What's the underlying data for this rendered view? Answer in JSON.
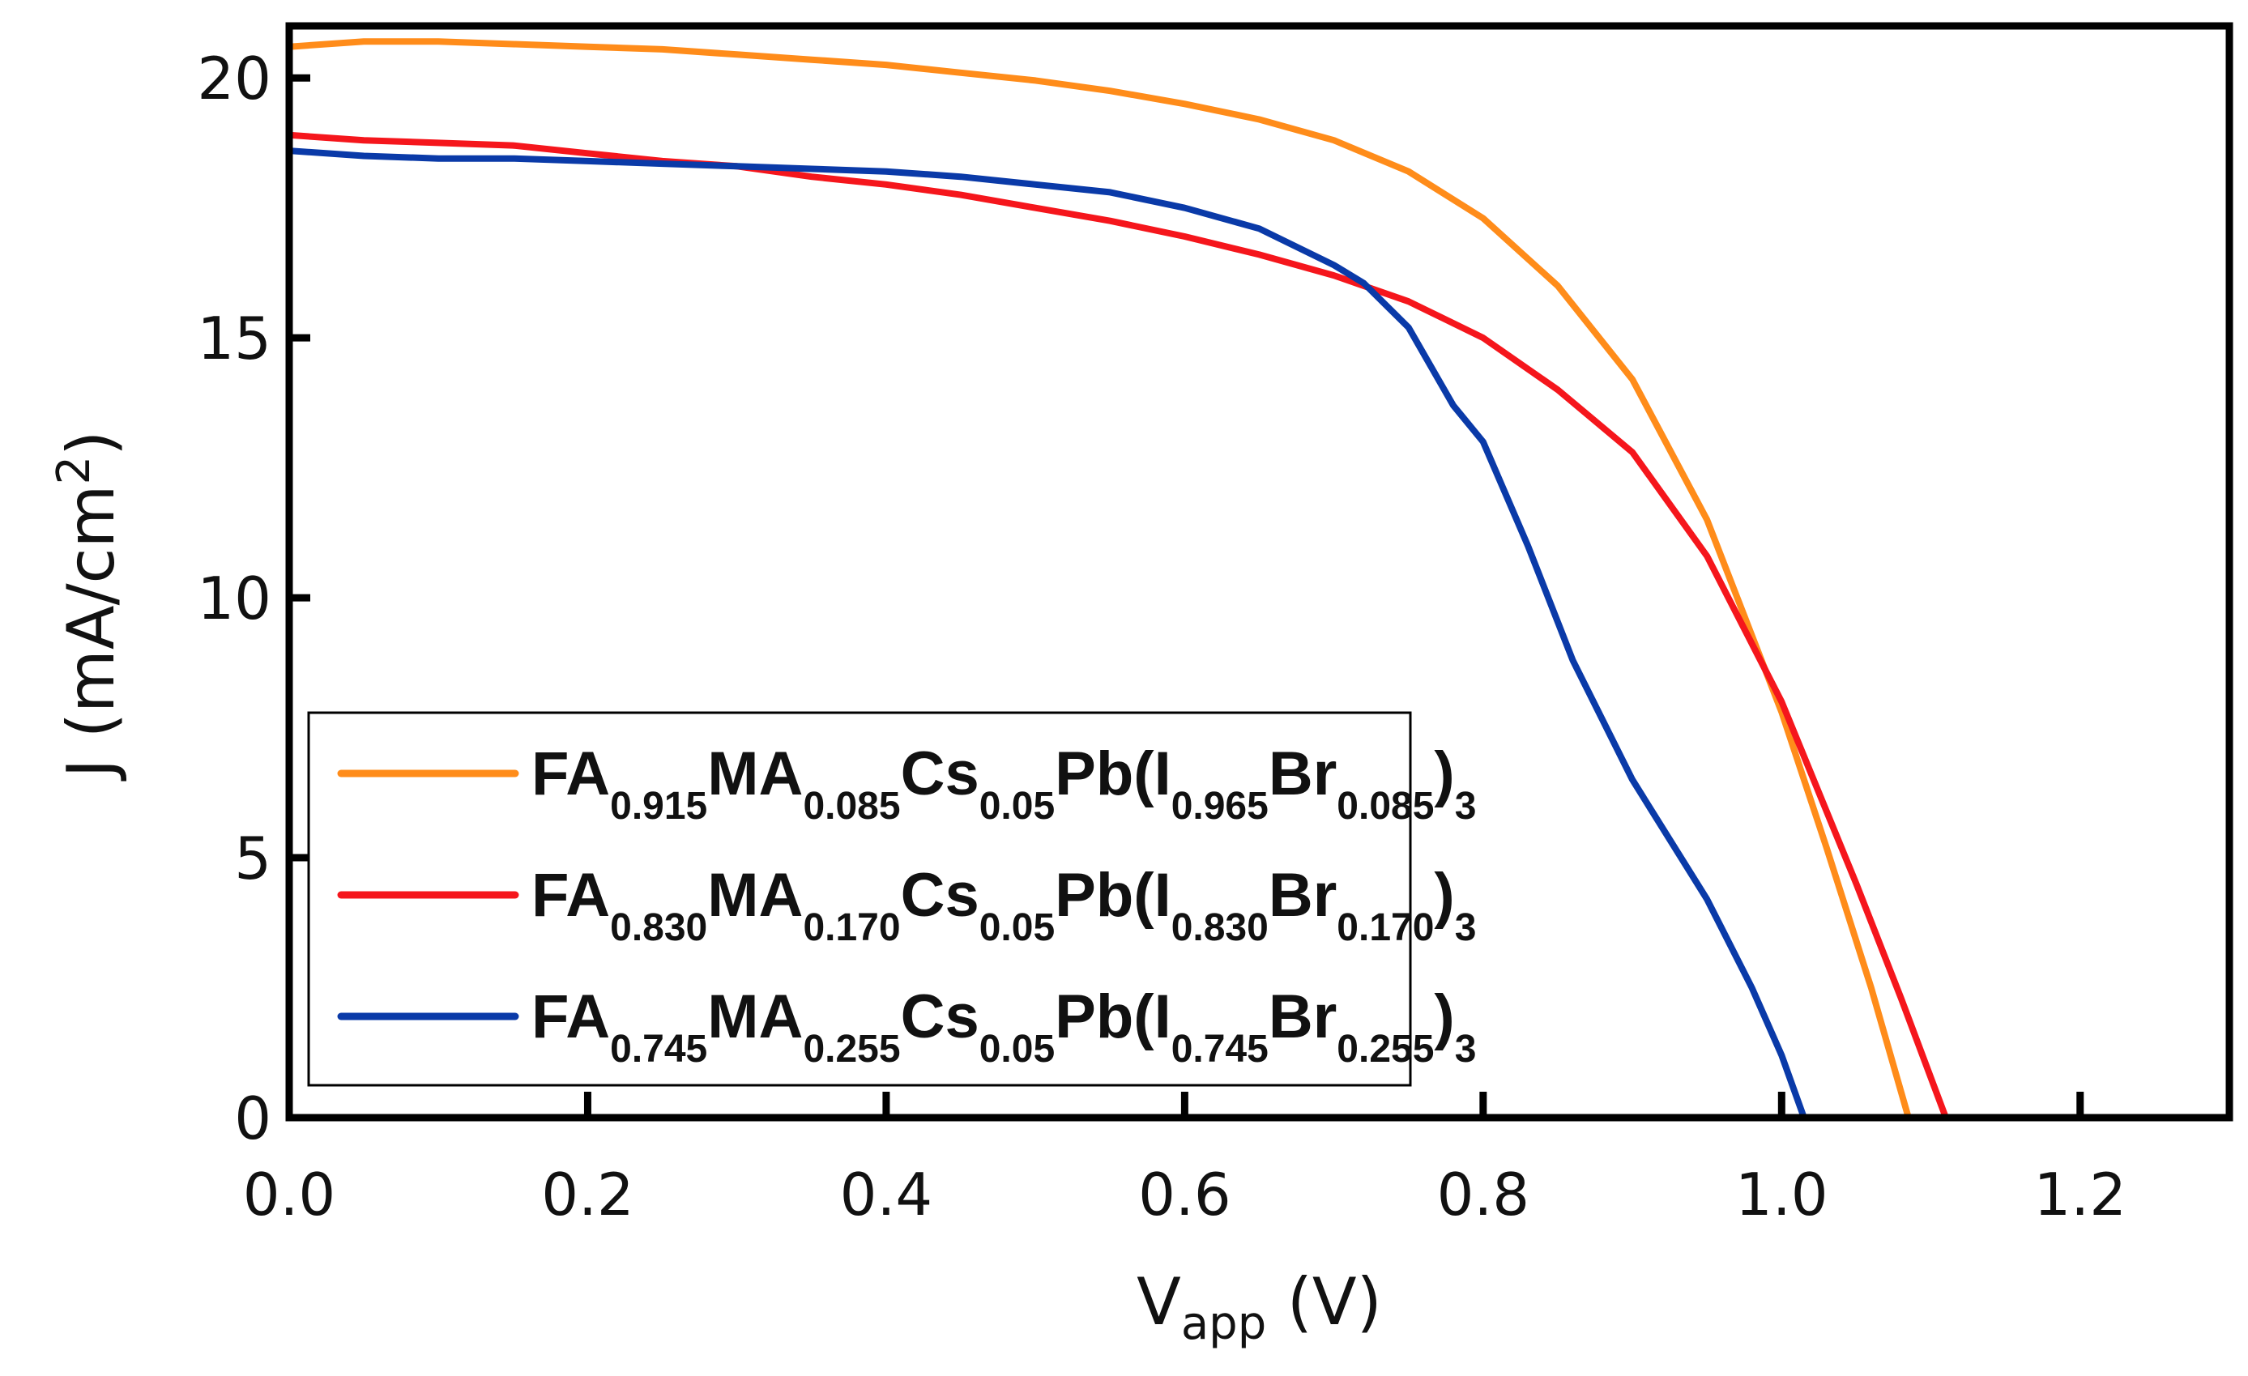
{
  "chart_data": {
    "type": "line",
    "xlabel": {
      "main": "V",
      "sub": "app",
      "suffix": " (V)"
    },
    "ylabel": {
      "main": "J (mA/cm",
      "sup": "2",
      "suffix": ")"
    },
    "xlim": [
      0.0,
      1.3
    ],
    "ylim": [
      0,
      21
    ],
    "xticks": [
      "0.0",
      "0.2",
      "0.4",
      "0.6",
      "0.8",
      "1.0",
      "1.2"
    ],
    "yticks": [
      "0",
      "5",
      "10",
      "15",
      "20"
    ],
    "grid": false,
    "legend_position": "bottom-left",
    "series": [
      {
        "name": "FA0.915MA0.085Cs0.05Pb(I0.965Br0.085)3",
        "name_parts": [
          {
            "t": "FA"
          },
          {
            "t": "0.915",
            "sub": true
          },
          {
            "t": "MA"
          },
          {
            "t": "0.085",
            "sub": true
          },
          {
            "t": "Cs"
          },
          {
            "t": "0.05",
            "sub": true
          },
          {
            "t": "Pb(I"
          },
          {
            "t": "0.965",
            "sub": true
          },
          {
            "t": "Br"
          },
          {
            "t": "0.085",
            "sub": true
          },
          {
            "t": ")"
          },
          {
            "t": "3",
            "sub": true
          }
        ],
        "color": "#ff8c1a",
        "x": [
          0.0,
          0.05,
          0.1,
          0.15,
          0.2,
          0.25,
          0.3,
          0.35,
          0.4,
          0.45,
          0.5,
          0.55,
          0.6,
          0.65,
          0.7,
          0.75,
          0.8,
          0.85,
          0.9,
          0.95,
          1.0,
          1.03,
          1.06,
          1.085
        ],
        "y": [
          20.6,
          20.7,
          20.7,
          20.65,
          20.6,
          20.55,
          20.45,
          20.35,
          20.25,
          20.1,
          19.95,
          19.75,
          19.5,
          19.2,
          18.8,
          18.2,
          17.3,
          16.0,
          14.2,
          11.5,
          7.8,
          5.2,
          2.5,
          0.0
        ]
      },
      {
        "name": "FA0.830MA0.170Cs0.05Pb(I0.830Br0.170)3",
        "name_parts": [
          {
            "t": "FA"
          },
          {
            "t": "0.830",
            "sub": true
          },
          {
            "t": "MA"
          },
          {
            "t": "0.170",
            "sub": true
          },
          {
            "t": "Cs"
          },
          {
            "t": "0.05",
            "sub": true
          },
          {
            "t": "Pb(I"
          },
          {
            "t": "0.830",
            "sub": true
          },
          {
            "t": "Br"
          },
          {
            "t": "0.170",
            "sub": true
          },
          {
            "t": ")"
          },
          {
            "t": "3",
            "sub": true
          }
        ],
        "color": "#f5161c",
        "x": [
          0.0,
          0.05,
          0.1,
          0.15,
          0.2,
          0.25,
          0.3,
          0.35,
          0.4,
          0.45,
          0.5,
          0.55,
          0.6,
          0.65,
          0.7,
          0.75,
          0.8,
          0.85,
          0.9,
          0.95,
          1.0,
          1.05,
          1.08,
          1.11
        ],
        "y": [
          18.9,
          18.8,
          18.75,
          18.7,
          18.55,
          18.4,
          18.3,
          18.1,
          17.95,
          17.75,
          17.5,
          17.25,
          16.95,
          16.6,
          16.2,
          15.7,
          15.0,
          14.0,
          12.8,
          10.8,
          8.0,
          4.5,
          2.3,
          0.0
        ]
      },
      {
        "name": "FA0.745MA0.255Cs0.05Pb(I0.745Br0.255)3",
        "name_parts": [
          {
            "t": "FA"
          },
          {
            "t": "0.745",
            "sub": true
          },
          {
            "t": "MA"
          },
          {
            "t": "0.255",
            "sub": true
          },
          {
            "t": "Cs"
          },
          {
            "t": "0.05",
            "sub": true
          },
          {
            "t": "Pb(I"
          },
          {
            "t": "0.745",
            "sub": true
          },
          {
            "t": "Br"
          },
          {
            "t": "0.255",
            "sub": true
          },
          {
            "t": ")"
          },
          {
            "t": "3",
            "sub": true
          }
        ],
        "color": "#0a3aa8",
        "x": [
          0.0,
          0.05,
          0.1,
          0.15,
          0.2,
          0.25,
          0.3,
          0.35,
          0.4,
          0.45,
          0.5,
          0.55,
          0.6,
          0.65,
          0.7,
          0.72,
          0.75,
          0.78,
          0.8,
          0.83,
          0.86,
          0.9,
          0.95,
          0.98,
          1.0,
          1.015
        ],
        "y": [
          18.6,
          18.5,
          18.45,
          18.45,
          18.4,
          18.35,
          18.3,
          18.25,
          18.2,
          18.1,
          17.95,
          17.8,
          17.5,
          17.1,
          16.4,
          16.05,
          15.2,
          13.7,
          13.0,
          11.0,
          8.8,
          6.5,
          4.2,
          2.5,
          1.2,
          0.0
        ]
      }
    ]
  }
}
